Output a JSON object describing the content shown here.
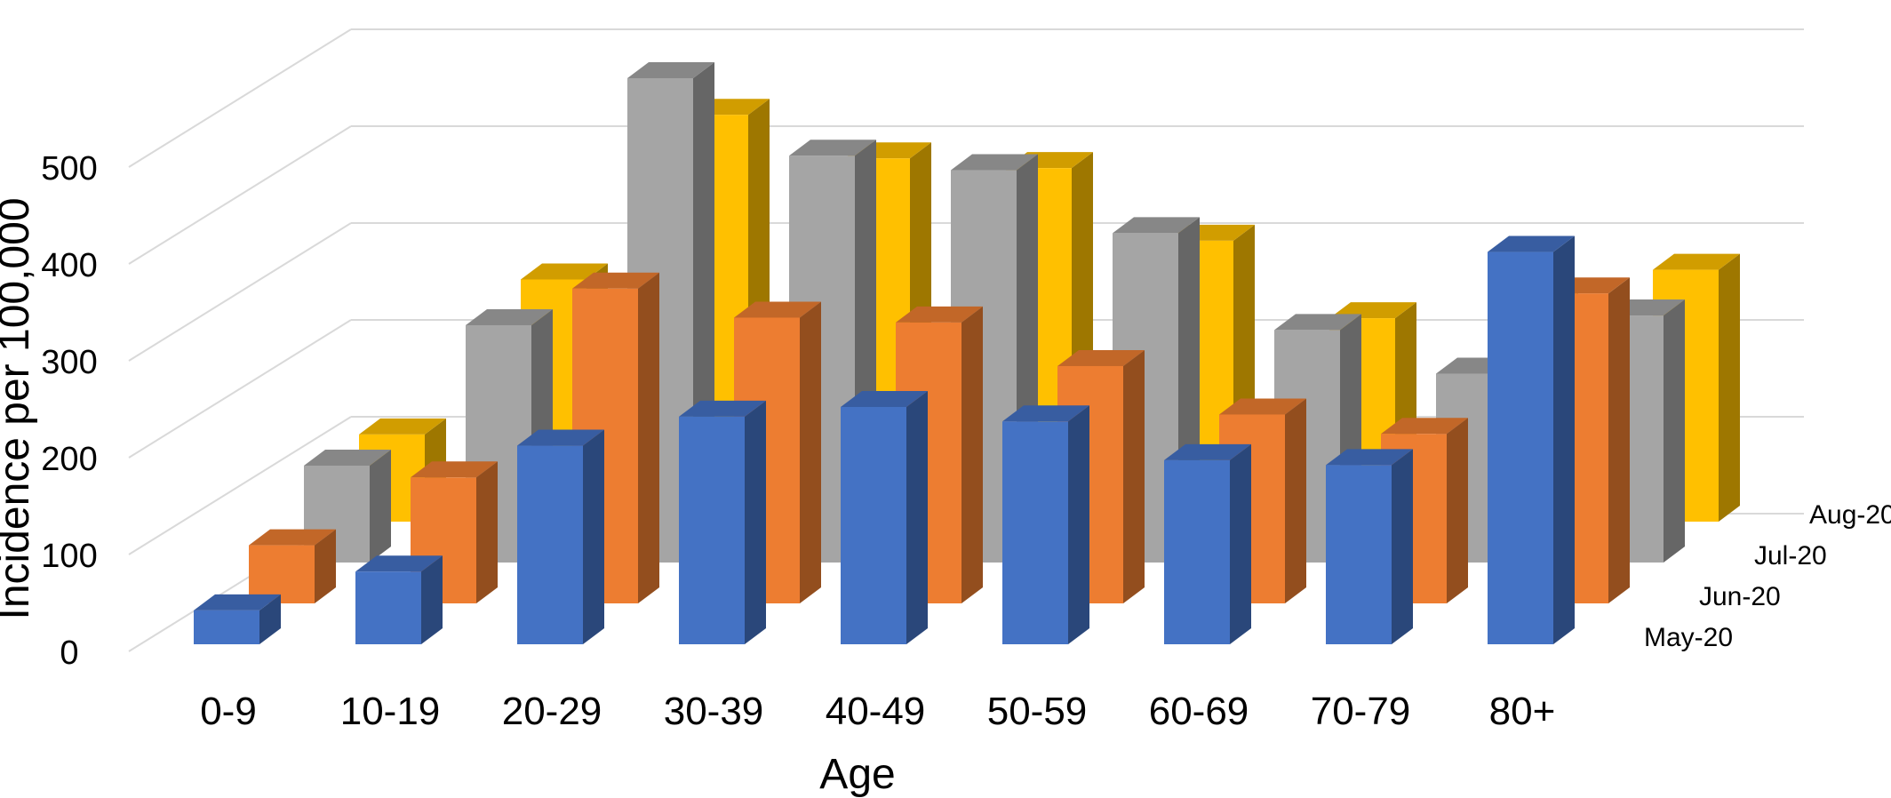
{
  "chart_data": {
    "type": "bar",
    "style": "3d-clustered-depth",
    "title": "",
    "xlabel": "Age",
    "ylabel": "Incidence per 100,000",
    "ylim": [
      0,
      500
    ],
    "yticks": [
      "0",
      "100",
      "200",
      "300",
      "400",
      "500"
    ],
    "grid": true,
    "categories": [
      "0-9",
      "10-19",
      "20-29",
      "30-39",
      "40-49",
      "50-59",
      "60-69",
      "70-79",
      "80+"
    ],
    "series": [
      {
        "name": "May-20",
        "color": "#4472C4",
        "values": [
          35,
          75,
          205,
          235,
          245,
          230,
          190,
          185,
          405
        ]
      },
      {
        "name": "Jun-20",
        "color": "#ED7D31",
        "values": [
          60,
          130,
          325,
          295,
          290,
          245,
          195,
          175,
          320
        ]
      },
      {
        "name": "Jul-20",
        "color": "#A5A5A5",
        "values": [
          100,
          245,
          500,
          420,
          405,
          340,
          240,
          195,
          255
        ]
      },
      {
        "name": "Aug-20",
        "color": "#FFC000",
        "values": [
          90,
          250,
          420,
          375,
          365,
          290,
          210,
          220,
          260
        ]
      }
    ]
  }
}
